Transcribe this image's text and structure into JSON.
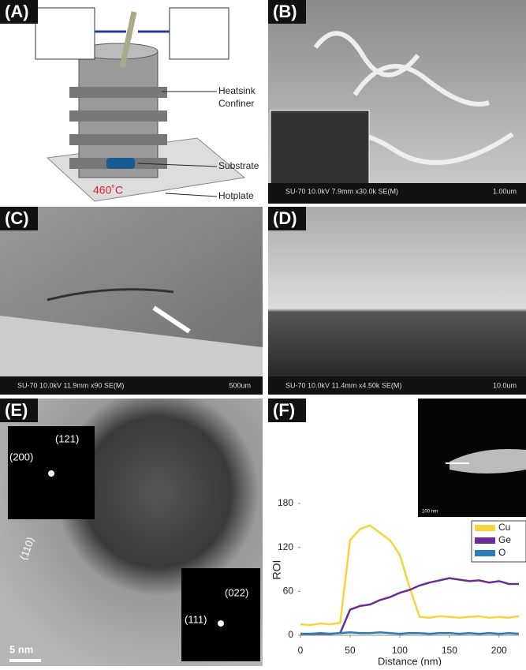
{
  "figure": {
    "panels": [
      {
        "label": "(A)",
        "annotations": [
          "Heatsink",
          "Confiner",
          "Substrate",
          "Hotplate"
        ],
        "temperature": "460˚C"
      },
      {
        "label": "(B)",
        "caption": "SU-70 10.0kV 7.9mm x30.0k SE(M)",
        "scale": "1.00um"
      },
      {
        "label": "(C)",
        "caption": "SU-70 10.0kV 11.9mm x90 SE(M)",
        "scale": "500um"
      },
      {
        "label": "(D)",
        "caption": "SU-70 10.0kV 11.4mm x4.50k SE(M)",
        "scale": "10.0um"
      },
      {
        "label": "(E)",
        "annotations": [
          "(200)",
          "(121)",
          "(111)",
          "(022)",
          "⟨110⟩"
        ],
        "scale": "5 nm"
      },
      {
        "label": "(F)",
        "scale": "100 nm"
      }
    ]
  },
  "chart_data": {
    "type": "line",
    "x_label": "Distance (nm)",
    "y_label": "ROI",
    "x": [
      0,
      10,
      20,
      30,
      40,
      50,
      60,
      70,
      80,
      90,
      100,
      110,
      120,
      130,
      140,
      150,
      160,
      170,
      180,
      190,
      200,
      210,
      220
    ],
    "series": [
      {
        "name": "Cu",
        "color": "#f7d43c",
        "values": [
          15,
          14,
          16,
          15,
          17,
          130,
          145,
          150,
          140,
          130,
          110,
          65,
          25,
          24,
          26,
          25,
          24,
          25,
          26,
          24,
          25,
          24,
          26
        ]
      },
      {
        "name": "Ge",
        "color": "#6b2d92",
        "values": [
          2,
          2,
          2,
          2,
          3,
          35,
          40,
          42,
          48,
          52,
          58,
          62,
          68,
          72,
          75,
          78,
          76,
          74,
          75,
          72,
          74,
          70,
          70
        ]
      },
      {
        "name": "O",
        "color": "#2b7bb9",
        "values": [
          2,
          2,
          3,
          2,
          3,
          4,
          3,
          3,
          4,
          3,
          2,
          3,
          3,
          2,
          3,
          3,
          2,
          3,
          2,
          3,
          2,
          3,
          2
        ]
      }
    ],
    "xlim": [
      0,
      220
    ],
    "ylim": [
      0,
      180
    ],
    "xticks": [
      0,
      50,
      100,
      150,
      200
    ],
    "yticks": [
      0,
      60,
      120,
      180
    ],
    "legend": "upper right"
  }
}
